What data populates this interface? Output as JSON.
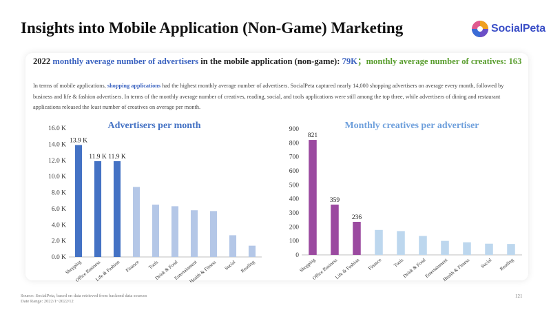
{
  "title": "Insights into Mobile Application (Non-Game) Marketing",
  "logo": {
    "text": "SocialPeta",
    "colors": [
      "#3a6bd6",
      "#e05a8e",
      "#f0a020",
      "#6a4fc7"
    ]
  },
  "headline": {
    "prefix": "2022 ",
    "metric1": "monthly average number of advertisers",
    "middle": " in the mobile application (non-game): ",
    "value1": "79K",
    "sep": "；",
    "metric2": "monthly average number of creatives: 163"
  },
  "paragraph": {
    "before": "In terms of mobile applications, ",
    "highlight": "shopping applications",
    "after": " had the highest monthly average number of advertisers. SocialPeta captured nearly 14,000 shopping advertisers on average every month, followed by business and life & fashion advertisers. In terms of the monthly average number of creatives, reading, social, and tools applications were still among the top three, while advertisers of dining and restaurant applications released the least number of creatives on average per month."
  },
  "chart_data": [
    {
      "type": "bar",
      "title": "Advertisers per month",
      "categories": [
        "Shopping",
        "Office Business",
        "Life & Fashion",
        "Finance",
        "Tools",
        "Drink & Food",
        "Entertainment",
        "Health & Fitness",
        "Social",
        "Reading"
      ],
      "values": [
        13.9,
        11.9,
        11.9,
        8.7,
        6.5,
        6.3,
        5.8,
        5.7,
        2.7,
        1.4
      ],
      "unit": "K",
      "data_labels": [
        "13.9 K",
        "11.9 K",
        "11.9 K",
        null,
        null,
        null,
        null,
        null,
        null,
        null
      ],
      "ylim": [
        0,
        16
      ],
      "yticks": [
        "0.0 K",
        "2.0 K",
        "4.0 K",
        "6.0 K",
        "8.0 K",
        "10.0 K",
        "12.0 K",
        "14.0 K",
        "16.0 K"
      ],
      "colors": {
        "highlight": "#4472c4",
        "normal": "#b4c7e7"
      },
      "highlight_count": 3,
      "grid": false
    },
    {
      "type": "bar",
      "title": "Monthly creatives per advertiser",
      "categories": [
        "Shopping",
        "Office Business",
        "Life & Fashion",
        "Finance",
        "Tools",
        "Drink & Food",
        "Entertainment",
        "Health & Fitness",
        "Social",
        "Reading"
      ],
      "values": [
        821,
        359,
        236,
        178,
        170,
        135,
        100,
        90,
        80,
        78
      ],
      "data_labels": [
        "821",
        "359",
        "236",
        null,
        null,
        null,
        null,
        null,
        null,
        null
      ],
      "ylim": [
        0,
        900
      ],
      "yticks": [
        "0",
        "100",
        "200",
        "300",
        "400",
        "500",
        "600",
        "700",
        "800",
        "900"
      ],
      "colors": {
        "highlight": "#9b4aa0",
        "normal": "#bdd7ee"
      },
      "highlight_count": 3,
      "grid": false
    }
  ],
  "footer": {
    "source": "Source: SocialPeta, based on data retrieved from backend data sources",
    "date_range": "Date Range:  2022/1~2022/12"
  },
  "page_number": "121"
}
